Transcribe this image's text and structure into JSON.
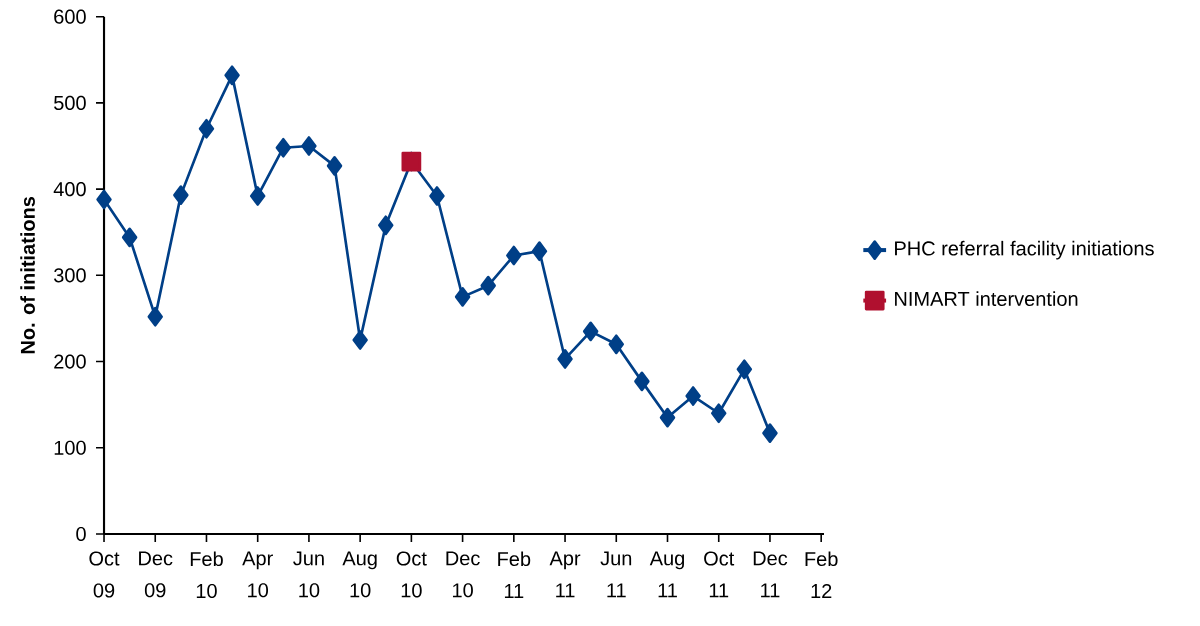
{
  "chart_data": {
    "type": "line",
    "ylabel": "No. of initiations",
    "categories": [
      "Oct 09",
      null,
      "Dec 09",
      null,
      "Feb 10",
      null,
      "Apr 10",
      null,
      "Jun 10",
      null,
      "Aug 10",
      null,
      "Oct 10",
      null,
      "Dec 10",
      null,
      "Feb 11",
      null,
      "Apr 11",
      null,
      "Jun 11",
      null,
      "Aug 11",
      null,
      "Oct 11",
      null,
      "Dec 11",
      null,
      "Feb 12"
    ],
    "series": [
      {
        "name": "PHC referral facility initiations",
        "color": "#003f87",
        "marker": "diamond",
        "values": [
          388,
          344,
          252,
          393,
          470,
          532,
          392,
          448,
          450,
          427,
          225,
          358,
          432,
          392,
          275,
          288,
          323,
          328,
          203,
          235,
          220,
          177,
          135,
          160,
          140,
          191,
          117,
          null,
          null
        ]
      },
      {
        "name": "NIMART intervention",
        "color": "#b0102f",
        "marker": "square",
        "values": [
          null,
          null,
          null,
          null,
          null,
          null,
          null,
          null,
          null,
          null,
          null,
          null,
          432,
          null,
          null,
          null,
          null,
          null,
          null,
          null,
          null,
          null,
          null,
          null,
          null,
          null,
          null,
          null,
          null
        ]
      }
    ],
    "ylim": [
      0,
      600
    ],
    "yticks": [
      0,
      100,
      200,
      300,
      400,
      500,
      600
    ],
    "grid": false,
    "legend": "right",
    "line_style": "solid"
  }
}
